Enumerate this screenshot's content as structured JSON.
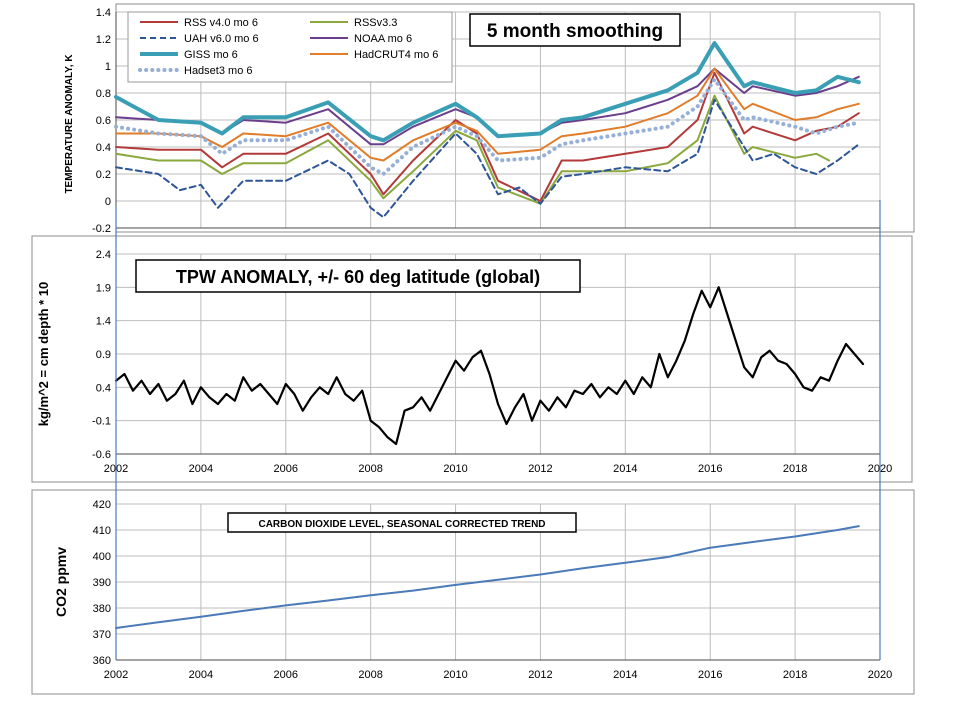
{
  "chart_data": [
    {
      "type": "line",
      "title": "5 month smoothing",
      "ylabel": "TEMPERATURE ANOMALY, K",
      "xlim": [
        2002,
        2020
      ],
      "ylim": [
        -0.2,
        1.4
      ],
      "xticks": [
        "2002",
        "2004",
        "2006",
        "2008",
        "2010",
        "2012",
        "2014",
        "2016",
        "2018",
        "2020"
      ],
      "yticks": [
        "-0.2",
        "0",
        "0.2",
        "0.4",
        "0.6",
        "0.8",
        "1",
        "1.2",
        "1.4"
      ],
      "grid": true,
      "legend_position": "top-left",
      "series": [
        {
          "name": "RSS v4.0 mo 6",
          "color": "#b23a3a",
          "style": "solid",
          "x": [
            2002,
            2003,
            2004,
            2004.5,
            2005,
            2006,
            2007,
            2008,
            2008.3,
            2009,
            2010,
            2010.5,
            2011,
            2012,
            2012.5,
            2013,
            2014,
            2015,
            2015.7,
            2016.1,
            2016.8,
            2017,
            2018,
            2018.5,
            2019,
            2019.5
          ],
          "y": [
            0.4,
            0.38,
            0.38,
            0.25,
            0.35,
            0.35,
            0.5,
            0.2,
            0.05,
            0.3,
            0.6,
            0.5,
            0.15,
            0.0,
            0.3,
            0.3,
            0.35,
            0.4,
            0.6,
            0.95,
            0.5,
            0.55,
            0.45,
            0.52,
            0.55,
            0.65
          ]
        },
        {
          "name": "RSSv3.3",
          "color": "#8aa83c",
          "style": "solid",
          "x": [
            2002,
            2003,
            2004,
            2004.5,
            2005,
            2006,
            2007,
            2008,
            2008.3,
            2009,
            2010,
            2010.5,
            2011,
            2012,
            2012.5,
            2013,
            2014,
            2015,
            2015.7,
            2016.1,
            2016.8,
            2017,
            2018,
            2018.5,
            2018.8
          ],
          "y": [
            0.35,
            0.3,
            0.3,
            0.2,
            0.28,
            0.28,
            0.45,
            0.15,
            0.02,
            0.22,
            0.52,
            0.45,
            0.1,
            -0.02,
            0.22,
            0.22,
            0.22,
            0.28,
            0.45,
            0.78,
            0.35,
            0.4,
            0.32,
            0.35,
            0.3
          ]
        },
        {
          "name": "UAH v6.0 mo 6",
          "color": "#2e5597",
          "style": "dashed",
          "x": [
            2002,
            2003,
            2003.5,
            2004,
            2004.4,
            2005,
            2006,
            2007,
            2007.5,
            2008,
            2008.3,
            2009,
            2010,
            2010.5,
            2011,
            2011.5,
            2012,
            2012.5,
            2013,
            2014,
            2015,
            2015.7,
            2016.1,
            2016.8,
            2017,
            2017.5,
            2018,
            2018.5,
            2019,
            2019.5
          ],
          "y": [
            0.25,
            0.2,
            0.08,
            0.12,
            -0.05,
            0.15,
            0.15,
            0.3,
            0.2,
            -0.05,
            -0.12,
            0.15,
            0.5,
            0.35,
            0.05,
            0.1,
            -0.02,
            0.18,
            0.2,
            0.25,
            0.22,
            0.35,
            0.75,
            0.4,
            0.3,
            0.35,
            0.25,
            0.2,
            0.3,
            0.42
          ]
        },
        {
          "name": "NOAA mo 6",
          "color": "#6b3e8c",
          "style": "solid",
          "x": [
            2002,
            2003,
            2004,
            2004.5,
            2005,
            2006,
            2007,
            2008,
            2008.3,
            2009,
            2010,
            2010.5,
            2011,
            2012,
            2012.5,
            2013,
            2014,
            2015,
            2015.7,
            2016.1,
            2016.8,
            2017,
            2018,
            2018.5,
            2019,
            2019.5
          ],
          "y": [
            0.62,
            0.6,
            0.58,
            0.5,
            0.6,
            0.58,
            0.68,
            0.42,
            0.42,
            0.55,
            0.68,
            0.62,
            0.48,
            0.5,
            0.58,
            0.6,
            0.65,
            0.75,
            0.85,
            0.98,
            0.8,
            0.85,
            0.78,
            0.8,
            0.85,
            0.92
          ]
        },
        {
          "name": "GISS mo 6",
          "color": "#3a9fb5",
          "style": "solid",
          "width": 4,
          "x": [
            2002,
            2003,
            2004,
            2004.5,
            2005,
            2006,
            2007,
            2008,
            2008.3,
            2009,
            2010,
            2010.5,
            2011,
            2012,
            2012.5,
            2013,
            2014,
            2015,
            2015.7,
            2016.1,
            2016.8,
            2017,
            2018,
            2018.5,
            2019,
            2019.5
          ],
          "y": [
            0.77,
            0.6,
            0.58,
            0.5,
            0.62,
            0.62,
            0.73,
            0.48,
            0.45,
            0.58,
            0.72,
            0.62,
            0.48,
            0.5,
            0.6,
            0.62,
            0.72,
            0.82,
            0.95,
            1.17,
            0.85,
            0.88,
            0.8,
            0.82,
            0.92,
            0.88
          ]
        },
        {
          "name": "HadCRUT4 mo 6",
          "color": "#e07c2a",
          "style": "solid",
          "x": [
            2002,
            2003,
            2004,
            2004.5,
            2005,
            2006,
            2007,
            2008,
            2008.3,
            2009,
            2010,
            2010.5,
            2011,
            2012,
            2012.5,
            2013,
            2014,
            2015,
            2015.7,
            2016.1,
            2016.8,
            2017,
            2018,
            2018.5,
            2019,
            2019.5
          ],
          "y": [
            0.5,
            0.5,
            0.48,
            0.4,
            0.5,
            0.48,
            0.58,
            0.32,
            0.3,
            0.45,
            0.58,
            0.52,
            0.35,
            0.38,
            0.48,
            0.5,
            0.55,
            0.65,
            0.78,
            0.98,
            0.68,
            0.72,
            0.6,
            0.62,
            0.68,
            0.72
          ]
        },
        {
          "name": "Hadset3 mo 6",
          "color": "#95afd6",
          "style": "dotted",
          "x": [
            2002,
            2003,
            2004,
            2004.5,
            2005,
            2006,
            2007,
            2008,
            2008.3,
            2009,
            2010,
            2010.5,
            2011,
            2012,
            2012.5,
            2013,
            2014,
            2015,
            2015.7,
            2016.1,
            2016.8,
            2017,
            2018,
            2018.5,
            2019,
            2019.5
          ],
          "y": [
            0.55,
            0.5,
            0.48,
            0.35,
            0.45,
            0.45,
            0.55,
            0.25,
            0.2,
            0.4,
            0.55,
            0.48,
            0.3,
            0.32,
            0.42,
            0.45,
            0.5,
            0.55,
            0.7,
            0.9,
            0.6,
            0.62,
            0.55,
            0.5,
            0.55,
            0.58
          ]
        }
      ]
    },
    {
      "type": "line",
      "title": "TPW ANOMALY, +/- 60 deg latitude (global)",
      "ylabel": "kg/m^2   = cm depth * 10",
      "xlim": [
        2002,
        2020
      ],
      "ylim": [
        -0.6,
        2.4
      ],
      "xticks": [
        "2002",
        "2004",
        "2006",
        "2008",
        "2010",
        "2012",
        "2014",
        "2016",
        "2018",
        "2020"
      ],
      "yticks": [
        "-0.6",
        "-0.1",
        "0.4",
        "0.9",
        "1.4",
        "1.9",
        "2.4"
      ],
      "grid": true,
      "series": [
        {
          "color": "#000000",
          "x": [
            2002,
            2002.2,
            2002.4,
            2002.6,
            2002.8,
            2003,
            2003.2,
            2003.4,
            2003.6,
            2003.8,
            2004,
            2004.2,
            2004.4,
            2004.6,
            2004.8,
            2005,
            2005.2,
            2005.4,
            2005.6,
            2005.8,
            2006,
            2006.2,
            2006.4,
            2006.6,
            2006.8,
            2007,
            2007.2,
            2007.4,
            2007.6,
            2007.8,
            2008,
            2008.2,
            2008.4,
            2008.6,
            2008.8,
            2009,
            2009.2,
            2009.4,
            2009.6,
            2009.8,
            2010,
            2010.2,
            2010.4,
            2010.6,
            2010.8,
            2011,
            2011.2,
            2011.4,
            2011.6,
            2011.8,
            2012,
            2012.2,
            2012.4,
            2012.6,
            2012.8,
            2013,
            2013.2,
            2013.4,
            2013.6,
            2013.8,
            2014,
            2014.2,
            2014.4,
            2014.6,
            2014.8,
            2015,
            2015.2,
            2015.4,
            2015.6,
            2015.8,
            2016,
            2016.2,
            2016.4,
            2016.6,
            2016.8,
            2017,
            2017.2,
            2017.4,
            2017.6,
            2017.8,
            2018,
            2018.2,
            2018.4,
            2018.6,
            2018.8,
            2019,
            2019.2,
            2019.4,
            2019.6
          ],
          "y": [
            0.5,
            0.6,
            0.35,
            0.5,
            0.3,
            0.45,
            0.2,
            0.3,
            0.5,
            0.15,
            0.4,
            0.25,
            0.15,
            0.3,
            0.2,
            0.55,
            0.35,
            0.45,
            0.3,
            0.15,
            0.45,
            0.3,
            0.05,
            0.25,
            0.4,
            0.3,
            0.55,
            0.3,
            0.2,
            0.35,
            -0.1,
            -0.2,
            -0.35,
            -0.45,
            0.05,
            0.1,
            0.25,
            0.05,
            0.3,
            0.55,
            0.8,
            0.65,
            0.85,
            0.95,
            0.6,
            0.15,
            -0.15,
            0.1,
            0.3,
            -0.1,
            0.2,
            0.05,
            0.25,
            0.1,
            0.35,
            0.3,
            0.45,
            0.25,
            0.4,
            0.3,
            0.5,
            0.3,
            0.55,
            0.4,
            0.9,
            0.55,
            0.8,
            1.1,
            1.5,
            1.85,
            1.6,
            1.9,
            1.5,
            1.1,
            0.7,
            0.55,
            0.85,
            0.95,
            0.8,
            0.75,
            0.6,
            0.4,
            0.35,
            0.55,
            0.5,
            0.8,
            1.05,
            0.9,
            0.75
          ]
        }
      ]
    },
    {
      "type": "line",
      "title": "CARBON DIOXIDE LEVEL, SEASONAL CORRECTED TREND",
      "ylabel": "CO2 ppmv",
      "xlim": [
        2002,
        2020
      ],
      "ylim": [
        360,
        420
      ],
      "xticks": [
        "2002",
        "2004",
        "2006",
        "2008",
        "2010",
        "2012",
        "2014",
        "2016",
        "2018",
        "2020"
      ],
      "yticks": [
        "360",
        "370",
        "380",
        "390",
        "400",
        "410",
        "420"
      ],
      "grid": true,
      "series": [
        {
          "color": "#4a7ab8",
          "x": [
            2002,
            2003,
            2004,
            2005,
            2006,
            2007,
            2008,
            2009,
            2010,
            2011,
            2012,
            2013,
            2014,
            2015,
            2016,
            2017,
            2018,
            2019,
            2019.5
          ],
          "y": [
            372.3,
            374.5,
            376.6,
            378.9,
            381.0,
            382.9,
            384.9,
            386.7,
            388.9,
            390.9,
            392.9,
            395.3,
            397.4,
            399.6,
            403.2,
            405.4,
            407.5,
            410.0,
            411.5
          ]
        }
      ]
    }
  ]
}
